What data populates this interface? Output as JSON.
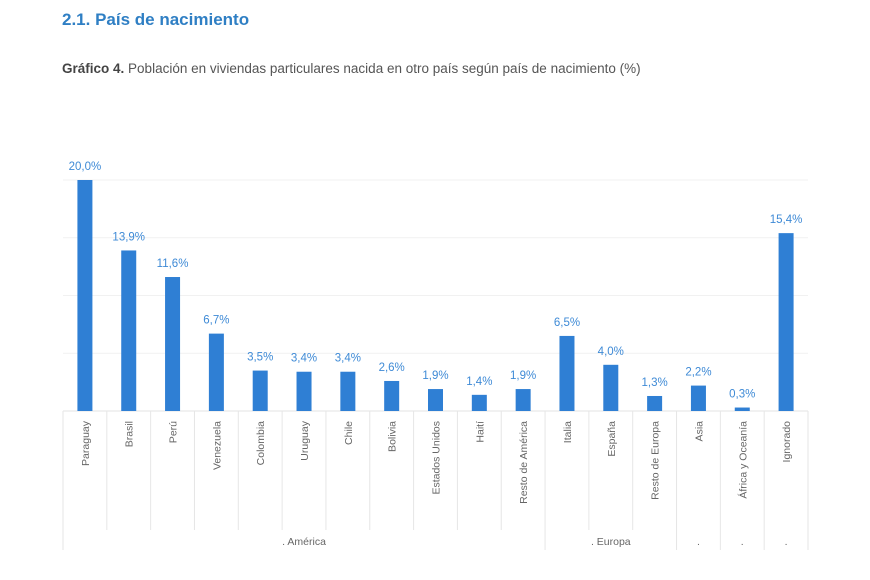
{
  "header": {
    "section_title": "2.1. País de nacimiento",
    "figure_label": "Gráfico 4.",
    "figure_title": "Población en viviendas particulares nacida en otro país según país de nacimiento (%)"
  },
  "colors": {
    "bar": "#2f7fd4",
    "label": "#3e8ad6",
    "title": "#2f7fc4"
  },
  "chart_data": {
    "type": "bar",
    "title": "Población en viviendas particulares nacida en otro país según país de nacimiento (%)",
    "xlabel": "",
    "ylabel": "",
    "ylim": [
      0,
      20
    ],
    "grid": true,
    "categories": [
      "Paraguay",
      "Brasil",
      "Perú",
      "Venezuela",
      "Colombia",
      "Uruguay",
      "Chile",
      "Bolivia",
      "Estados Unidos",
      "Haití",
      "Resto de América",
      "Italia",
      "España",
      "Resto de Europa",
      "Asia",
      "África y Oceanía",
      "Ignorado"
    ],
    "values": [
      20.0,
      13.9,
      11.6,
      6.7,
      3.5,
      3.4,
      3.4,
      2.6,
      1.9,
      1.4,
      1.9,
      6.5,
      4.0,
      1.3,
      2.2,
      0.3,
      15.4
    ],
    "value_labels": [
      "20,0%",
      "13,9%",
      "11,6%",
      "6,7%",
      "3,5%",
      "3,4%",
      "3,4%",
      "2,6%",
      "1,9%",
      "1,4%",
      "1,9%",
      "6,5%",
      "4,0%",
      "1,3%",
      "2,2%",
      "0,3%",
      "15,4%"
    ],
    "groups": [
      {
        "label": ". América",
        "count": 11
      },
      {
        "label": ". Europa",
        "count": 3
      },
      {
        "label": ".",
        "count": 1
      },
      {
        "label": ".",
        "count": 1
      },
      {
        "label": ".",
        "count": 1
      }
    ]
  }
}
